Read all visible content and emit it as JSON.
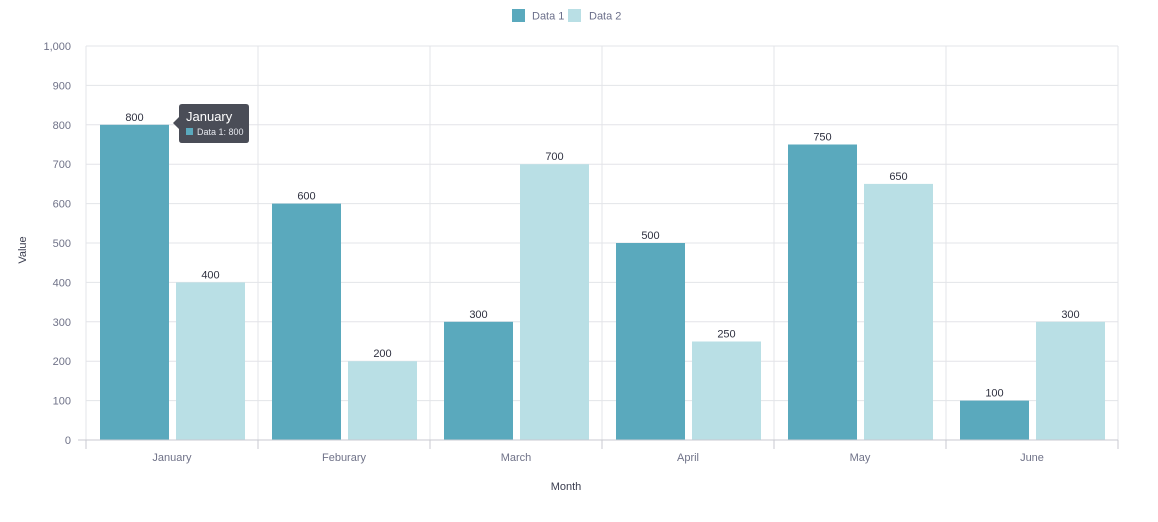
{
  "chart_data": {
    "type": "bar",
    "categories": [
      "January",
      "Feburary",
      "March",
      "April",
      "May",
      "June"
    ],
    "series": [
      {
        "name": "Data 1",
        "values": [
          800,
          600,
          300,
          500,
          750,
          100
        ],
        "color": "#5aa9bd"
      },
      {
        "name": "Data 2",
        "values": [
          400,
          200,
          700,
          250,
          650,
          300
        ],
        "color": "#b9dfe5"
      }
    ],
    "xlabel": "Month",
    "ylabel": "Value",
    "ylim": [
      0,
      1000
    ],
    "yticks": [
      "0",
      "100",
      "200",
      "300",
      "400",
      "500",
      "600",
      "700",
      "800",
      "900",
      "1,000"
    ],
    "data_labels": true,
    "grid": true,
    "legend": "top-center",
    "tooltip": {
      "title": "January",
      "text": "Data 1: 800",
      "color": "#4a4d57",
      "swatch": "#5aa9bd"
    },
    "colors": {
      "grid": "#e3e4e8",
      "axis": "#c9cad1"
    }
  }
}
